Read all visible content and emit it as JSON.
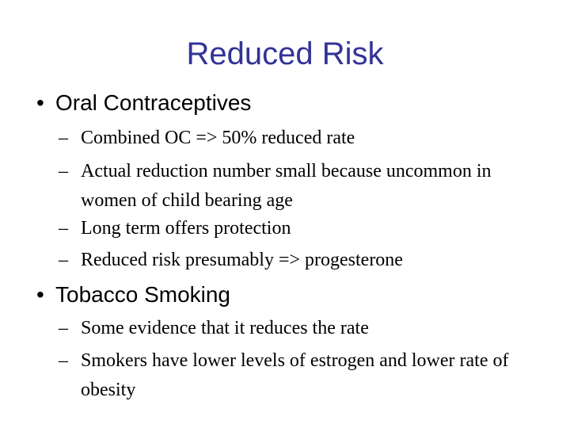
{
  "slide": {
    "title": "Reduced Risk",
    "bullet_marker": "•",
    "sub_marker": "–",
    "sections": [
      {
        "heading": "Oral Contraceptives",
        "items": [
          "Combined OC => 50% reduced rate",
          "Actual reduction number small because uncommon in women of child bearing age",
          "Long term offers protection",
          "Reduced risk presumably => progesterone"
        ]
      },
      {
        "heading": "Tobacco Smoking",
        "items": [
          "Some evidence that it reduces the rate",
          "Smokers have lower levels of estrogen and lower rate of obesity"
        ]
      }
    ]
  },
  "colors": {
    "title": "#333399",
    "text": "#000000",
    "background": "#ffffff"
  }
}
